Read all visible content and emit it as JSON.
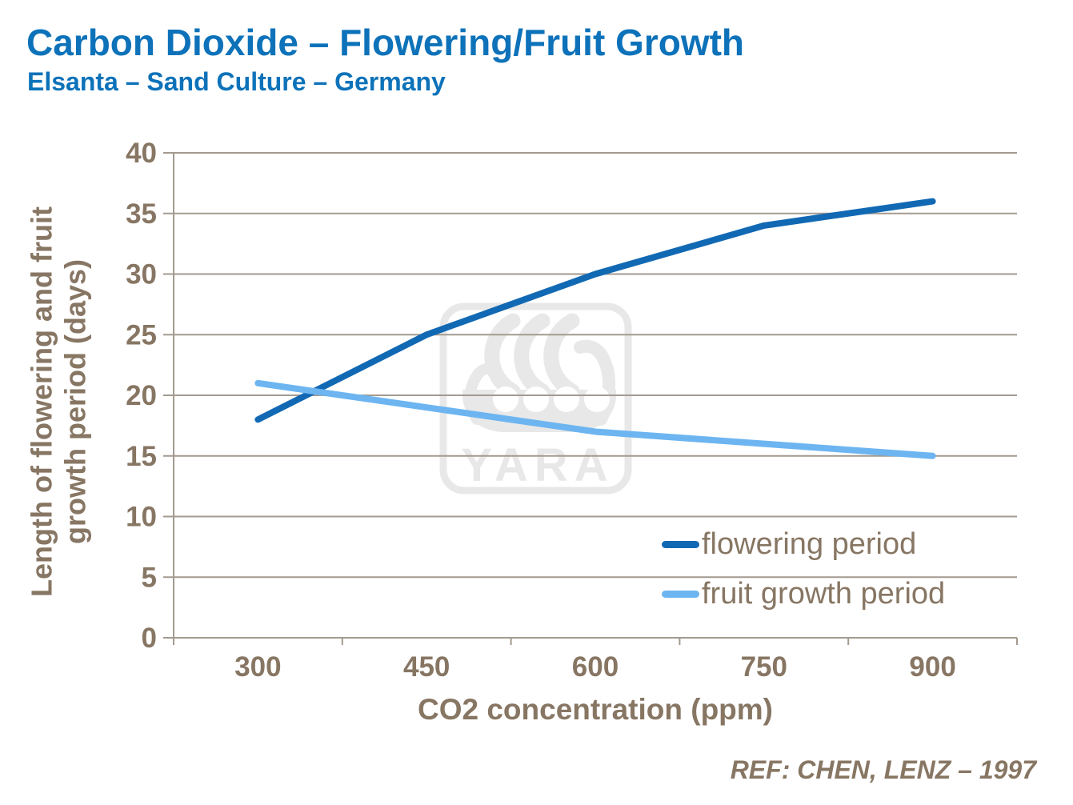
{
  "header": {
    "title": "Carbon Dioxide – Flowering/Fruit Growth",
    "subtitle": "Elsanta – Sand Culture – Germany"
  },
  "footer": {
    "reference": "REF:  CHEN, LENZ – 1997"
  },
  "watermark": {
    "text": "YARA"
  },
  "colors": {
    "title_blue": "#0D72B9",
    "text_brown": "#877663",
    "gridline": "#A39A90",
    "flowering_blue": "#1169B4",
    "fruit_light_blue": "#6DB5F1",
    "watermark_gray": "#E8E8E8"
  },
  "chart_data": {
    "type": "line",
    "title": "",
    "xlabel": "CO2 concentration (ppm)",
    "ylabel": "Length of flowering and fruit growth period (days)",
    "ylabel_lines": [
      "Length of flowering and fruit",
      "growth period (days)"
    ],
    "categories": [
      "300",
      "450",
      "600",
      "750",
      "900"
    ],
    "series": [
      {
        "name": "flowering period",
        "values": [
          18,
          25,
          30,
          34,
          36
        ],
        "color": "#1169B4"
      },
      {
        "name": "fruit growth period",
        "values": [
          21,
          19,
          17,
          16,
          15
        ],
        "color": "#6DB5F1"
      }
    ],
    "ylim": [
      0,
      40
    ],
    "yticks": [
      0,
      5,
      10,
      15,
      20,
      25,
      30,
      35,
      40
    ],
    "grid": true,
    "legend_position": "inside-right"
  }
}
